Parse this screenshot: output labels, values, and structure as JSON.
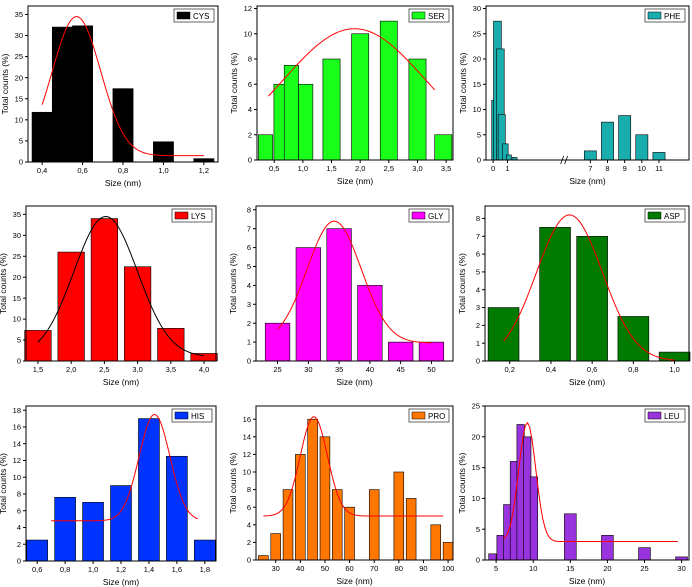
{
  "chart_data": [
    {
      "type": "bar",
      "legend": "CYS",
      "color": "#000000",
      "fit_color": "#ff0000",
      "xlabel": "Size (nm)",
      "ylabel": "Total counts (%)",
      "xlim": [
        0.33,
        1.27
      ],
      "ylim": [
        0,
        37
      ],
      "xticks": [
        0.4,
        0.6,
        0.8,
        1.0,
        1.2
      ],
      "xticklabels": [
        "0,4",
        "0,6",
        "0,8",
        "1,0",
        "1,2"
      ],
      "yticks": [
        0,
        5,
        10,
        15,
        20,
        25,
        30,
        35
      ],
      "bars": [
        {
          "x": 0.4,
          "w": 0.1,
          "v": 11.8
        },
        {
          "x": 0.5,
          "w": 0.1,
          "v": 32.0
        },
        {
          "x": 0.6,
          "w": 0.1,
          "v": 32.3
        },
        {
          "x": 0.8,
          "w": 0.1,
          "v": 17.4
        },
        {
          "x": 1.0,
          "w": 0.1,
          "v": 4.8
        },
        {
          "x": 1.2,
          "w": 0.1,
          "v": 0.8
        }
      ],
      "fit": {
        "y0": 1.5,
        "A": 33.0,
        "xc": 0.57,
        "s": 0.12,
        "from": 0.4,
        "to": 1.2
      }
    },
    {
      "type": "bar",
      "legend": "SER",
      "color": "#1aff1a",
      "fit_color": "#ff0000",
      "xlabel": "Size (nm)",
      "ylabel": "Total counts (%)",
      "xlim": [
        0.2,
        3.62
      ],
      "ylim": [
        0,
        12.2
      ],
      "xticks": [
        0.5,
        1.0,
        1.5,
        2.0,
        2.5,
        3.0,
        3.5
      ],
      "xticklabels": [
        "0,5",
        "1,0",
        "1,5",
        "2,0",
        "2,5",
        "3,0",
        "3,5"
      ],
      "yticks": [
        0,
        2,
        4,
        6,
        8,
        10,
        12
      ],
      "bars": [
        {
          "x": 0.35,
          "w": 0.25,
          "v": 2
        },
        {
          "x": 0.62,
          "w": 0.25,
          "v": 6
        },
        {
          "x": 0.8,
          "w": 0.25,
          "v": 7.5
        },
        {
          "x": 1.05,
          "w": 0.25,
          "v": 6
        },
        {
          "x": 1.5,
          "w": 0.3,
          "v": 8
        },
        {
          "x": 2.0,
          "w": 0.3,
          "v": 10
        },
        {
          "x": 2.5,
          "w": 0.3,
          "v": 11
        },
        {
          "x": 3.0,
          "w": 0.3,
          "v": 8
        },
        {
          "x": 3.45,
          "w": 0.3,
          "v": 2
        }
      ],
      "fit": {
        "y0": 0,
        "A": 10.4,
        "xc": 1.9,
        "s": 1.25,
        "from": 0.4,
        "to": 3.3
      }
    },
    {
      "type": "bar",
      "legend": "PHE",
      "color": "#1aadad",
      "fit_color": null,
      "xlabel": "Size (nm)",
      "ylabel": "Total counts (%)",
      "xlim": [
        -0.5,
        13.7
      ],
      "ylim": [
        0,
        30.5
      ],
      "axis_break": 5.0,
      "xticks": [
        0,
        1,
        6.8,
        8,
        9.2,
        10.4,
        11.6
      ],
      "xticklabels": [
        "0",
        "1",
        "7",
        "8",
        "9",
        "10",
        "11"
      ],
      "yticks": [
        0,
        5,
        10,
        15,
        20,
        25,
        30
      ],
      "bars": [
        {
          "x": 0.05,
          "w": 0.3,
          "v": 11.8
        },
        {
          "x": 0.3,
          "w": 0.55,
          "v": 27.5
        },
        {
          "x": 0.5,
          "w": 0.55,
          "v": 22.0
        },
        {
          "x": 0.6,
          "w": 0.5,
          "v": 9.0
        },
        {
          "x": 0.85,
          "w": 0.4,
          "v": 3.2
        },
        {
          "x": 1.1,
          "w": 0.35,
          "v": 1.0
        },
        {
          "x": 1.5,
          "w": 0.35,
          "v": 0.5
        },
        {
          "x": 6.8,
          "w": 0.85,
          "v": 1.8
        },
        {
          "x": 8.0,
          "w": 0.85,
          "v": 7.5
        },
        {
          "x": 9.2,
          "w": 0.85,
          "v": 8.8
        },
        {
          "x": 10.4,
          "w": 0.85,
          "v": 5.0
        },
        {
          "x": 11.6,
          "w": 0.85,
          "v": 1.5
        }
      ]
    },
    {
      "type": "bar",
      "legend": "LYS",
      "color": "#ff0000",
      "fit_color": "#000000",
      "xlabel": "Size (nm)",
      "ylabel": "Total counts (%)",
      "xlim": [
        1.32,
        4.18
      ],
      "ylim": [
        0,
        37
      ],
      "xticks": [
        1.5,
        2.0,
        2.5,
        3.0,
        3.5,
        4.0
      ],
      "xticklabels": [
        "1,5",
        "2,0",
        "2,5",
        "3,0",
        "3,5",
        "4,0"
      ],
      "yticks": [
        0,
        5,
        10,
        15,
        20,
        25,
        30,
        35
      ],
      "bars": [
        {
          "x": 1.5,
          "w": 0.4,
          "v": 7.3
        },
        {
          "x": 2.0,
          "w": 0.4,
          "v": 26.0
        },
        {
          "x": 2.5,
          "w": 0.4,
          "v": 34.0
        },
        {
          "x": 3.0,
          "w": 0.4,
          "v": 22.5
        },
        {
          "x": 3.5,
          "w": 0.4,
          "v": 7.8
        },
        {
          "x": 4.0,
          "w": 0.4,
          "v": 1.8
        }
      ],
      "fit": {
        "y0": 1.0,
        "A": 33.5,
        "xc": 2.52,
        "s": 0.48,
        "from": 1.5,
        "to": 4.0
      }
    },
    {
      "type": "bar",
      "legend": "GLY",
      "color": "#ff00ff",
      "fit_color": "#ff0000",
      "xlabel": "Size (nm)",
      "ylabel": "Total counts (%)",
      "xlim": [
        21.5,
        53.5
      ],
      "ylim": [
        0,
        8.2
      ],
      "xticks": [
        25,
        30,
        35,
        40,
        45,
        50
      ],
      "xticklabels": [
        "25",
        "30",
        "35",
        "40",
        "45",
        "50"
      ],
      "yticks": [
        0,
        1,
        2,
        3,
        4,
        5,
        6,
        7,
        8
      ],
      "bars": [
        {
          "x": 25,
          "w": 4,
          "v": 2
        },
        {
          "x": 30,
          "w": 4,
          "v": 6
        },
        {
          "x": 35,
          "w": 4,
          "v": 7
        },
        {
          "x": 40,
          "w": 4,
          "v": 4
        },
        {
          "x": 45,
          "w": 4,
          "v": 1
        },
        {
          "x": 50,
          "w": 4,
          "v": 1
        }
      ],
      "fit": {
        "y0": 0.95,
        "A": 6.45,
        "xc": 34.2,
        "s": 4.4,
        "from": 25,
        "to": 50
      }
    },
    {
      "type": "bar",
      "legend": "ASP",
      "color": "#007a00",
      "fit_color": "#ff0000",
      "xlabel": "Size (nm)",
      "ylabel": "Total counts (%)",
      "xlim": [
        0.08,
        1.07
      ],
      "ylim": [
        0,
        8.7
      ],
      "xticks": [
        0.2,
        0.4,
        0.6,
        0.8,
        1.0
      ],
      "xticklabels": [
        "0,2",
        "0,4",
        "0,6",
        "0,8",
        "1,0"
      ],
      "yticks": [
        0,
        1,
        2,
        3,
        4,
        5,
        6,
        7,
        8
      ],
      "bars": [
        {
          "x": 0.17,
          "w": 0.15,
          "v": 3.0
        },
        {
          "x": 0.42,
          "w": 0.15,
          "v": 7.5
        },
        {
          "x": 0.6,
          "w": 0.15,
          "v": 7.0
        },
        {
          "x": 0.8,
          "w": 0.15,
          "v": 2.5
        },
        {
          "x": 1.0,
          "w": 0.15,
          "v": 0.5
        }
      ],
      "fit": {
        "y0": 0,
        "A": 8.2,
        "xc": 0.49,
        "s": 0.16,
        "from": 0.17,
        "to": 1.0
      }
    },
    {
      "type": "bar",
      "legend": "HIS",
      "color": "#0033ff",
      "fit_color": "#ff0000",
      "xlabel": "Size (nm)",
      "ylabel": "Total counts (%)",
      "xlim": [
        0.52,
        1.88
      ],
      "ylim": [
        0,
        18.5
      ],
      "xticks": [
        0.6,
        0.8,
        1.0,
        1.2,
        1.4,
        1.6,
        1.8
      ],
      "xticklabels": [
        "0,6",
        "0,8",
        "1,0",
        "1,2",
        "1,4",
        "1,6",
        "1,8"
      ],
      "yticks": [
        0,
        2,
        4,
        6,
        8,
        10,
        12,
        14,
        16,
        18
      ],
      "bars": [
        {
          "x": 0.6,
          "w": 0.15,
          "v": 2.5
        },
        {
          "x": 0.8,
          "w": 0.15,
          "v": 7.6
        },
        {
          "x": 1.0,
          "w": 0.15,
          "v": 7.0
        },
        {
          "x": 1.2,
          "w": 0.15,
          "v": 9.0
        },
        {
          "x": 1.4,
          "w": 0.15,
          "v": 17.0
        },
        {
          "x": 1.6,
          "w": 0.15,
          "v": 12.5
        },
        {
          "x": 1.8,
          "w": 0.15,
          "v": 2.5
        }
      ],
      "fit": {
        "y0": 4.8,
        "A": 12.7,
        "xc": 1.44,
        "s": 0.11,
        "from": 0.7,
        "to": 1.75
      }
    },
    {
      "type": "bar",
      "legend": "PRO",
      "color": "#ff7700",
      "fit_color": "#ff0000",
      "xlabel": "Size (nm)",
      "ylabel": "Total counts (%)",
      "xlim": [
        22,
        102
      ],
      "ylim": [
        0,
        17.5
      ],
      "xticks": [
        30,
        40,
        50,
        60,
        70,
        80,
        90,
        100
      ],
      "xticklabels": [
        "30",
        "40",
        "50",
        "60",
        "70",
        "80",
        "90",
        "100"
      ],
      "yticks": [
        0,
        2,
        4,
        6,
        8,
        10,
        12,
        14,
        16
      ],
      "bars": [
        {
          "x": 25,
          "w": 4,
          "v": 0.5
        },
        {
          "x": 30,
          "w": 4,
          "v": 3
        },
        {
          "x": 35,
          "w": 4,
          "v": 8
        },
        {
          "x": 40,
          "w": 4,
          "v": 12
        },
        {
          "x": 45,
          "w": 4,
          "v": 16
        },
        {
          "x": 50,
          "w": 4,
          "v": 14
        },
        {
          "x": 55,
          "w": 4,
          "v": 8
        },
        {
          "x": 60,
          "w": 4,
          "v": 6
        },
        {
          "x": 70,
          "w": 4,
          "v": 8
        },
        {
          "x": 80,
          "w": 4,
          "v": 10
        },
        {
          "x": 85,
          "w": 4,
          "v": 7
        },
        {
          "x": 95,
          "w": 4,
          "v": 4
        },
        {
          "x": 100,
          "w": 4,
          "v": 2
        }
      ],
      "fit": {
        "y0": 5.0,
        "A": 11.3,
        "xc": 45.5,
        "s": 5.5,
        "from": 25,
        "to": 98
      }
    },
    {
      "type": "bar",
      "legend": "LEU",
      "color": "#9933dd",
      "fit_color": "#ff0000",
      "xlabel": "Size (nm)",
      "ylabel": "Total counts (%)",
      "xlim": [
        3.5,
        31
      ],
      "ylim": [
        0,
        25
      ],
      "xticks": [
        5,
        10,
        15,
        20,
        25,
        30
      ],
      "xticklabels": [
        "5",
        "10",
        "15",
        "20",
        "25",
        "30"
      ],
      "yticks": [
        0,
        5,
        10,
        15,
        20,
        25
      ],
      "bars": [
        {
          "x": 4.5,
          "w": 1.0,
          "v": 1
        },
        {
          "x": 5.6,
          "w": 1.0,
          "v": 4
        },
        {
          "x": 6.5,
          "w": 1.0,
          "v": 9
        },
        {
          "x": 7.4,
          "w": 1.0,
          "v": 16
        },
        {
          "x": 8.3,
          "w": 1.0,
          "v": 22
        },
        {
          "x": 9.2,
          "w": 1.0,
          "v": 20
        },
        {
          "x": 10.1,
          "w": 1.0,
          "v": 13.5
        },
        {
          "x": 15.0,
          "w": 1.6,
          "v": 7.5
        },
        {
          "x": 20.0,
          "w": 1.6,
          "v": 4
        },
        {
          "x": 25.0,
          "w": 1.6,
          "v": 2
        },
        {
          "x": 30.0,
          "w": 1.6,
          "v": 0.5
        }
      ],
      "fit": {
        "y0": 3.0,
        "A": 19.3,
        "xc": 9.2,
        "s": 1.15,
        "from": 6.0,
        "to": 29.5
      }
    }
  ]
}
